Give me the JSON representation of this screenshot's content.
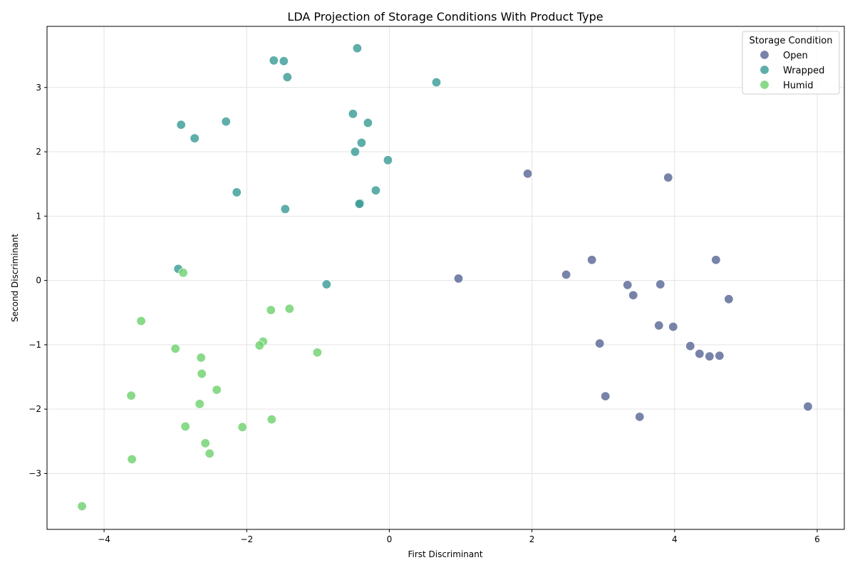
{
  "chart_data": {
    "type": "scatter",
    "title": "LDA Projection of Storage Conditions With Product Type",
    "xlabel": "First Discriminant",
    "ylabel": "Second Discriminant",
    "xlim": [
      -4.8,
      6.38
    ],
    "ylim": [
      -3.87,
      3.95
    ],
    "xticks": [
      -4,
      -2,
      0,
      2,
      4,
      6
    ],
    "yticks": [
      -3,
      -2,
      -1,
      0,
      1,
      2,
      3
    ],
    "grid": true,
    "legend": {
      "title": "Storage Condition",
      "placement": "top-right"
    },
    "series": [
      {
        "name": "Open",
        "color": "#5a6896",
        "points": [
          [
            1.94,
            1.66
          ],
          [
            3.91,
            1.6
          ],
          [
            2.84,
            0.32
          ],
          [
            4.58,
            0.32
          ],
          [
            0.97,
            0.03
          ],
          [
            2.48,
            0.09
          ],
          [
            3.34,
            -0.07
          ],
          [
            3.8,
            -0.06
          ],
          [
            3.42,
            -0.23
          ],
          [
            4.76,
            -0.29
          ],
          [
            3.78,
            -0.7
          ],
          [
            3.98,
            -0.72
          ],
          [
            2.95,
            -0.98
          ],
          [
            4.22,
            -1.02
          ],
          [
            4.35,
            -1.14
          ],
          [
            4.49,
            -1.18
          ],
          [
            4.63,
            -1.17
          ],
          [
            3.03,
            -1.8
          ],
          [
            3.51,
            -2.12
          ],
          [
            5.87,
            -1.96
          ]
        ]
      },
      {
        "name": "Wrapped",
        "color": "#3b9c96",
        "points": [
          [
            -0.45,
            3.61
          ],
          [
            -1.62,
            3.42
          ],
          [
            -1.48,
            3.41
          ],
          [
            -1.43,
            3.16
          ],
          [
            0.66,
            3.08
          ],
          [
            -0.51,
            2.59
          ],
          [
            -0.3,
            2.45
          ],
          [
            -2.29,
            2.47
          ],
          [
            -2.92,
            2.42
          ],
          [
            -2.73,
            2.21
          ],
          [
            -0.39,
            2.14
          ],
          [
            -0.48,
            2.0
          ],
          [
            -0.02,
            1.87
          ],
          [
            -0.19,
            1.4
          ],
          [
            -2.14,
            1.37
          ],
          [
            -0.41,
            1.2
          ],
          [
            -0.42,
            1.19
          ],
          [
            -1.46,
            1.11
          ],
          [
            -2.96,
            0.18
          ],
          [
            -0.88,
            -0.06
          ]
        ]
      },
      {
        "name": "Humid",
        "color": "#6fd26f",
        "points": [
          [
            -2.89,
            0.12
          ],
          [
            -1.4,
            -0.44
          ],
          [
            -1.66,
            -0.46
          ],
          [
            -3.48,
            -0.63
          ],
          [
            -1.77,
            -0.95
          ],
          [
            -1.82,
            -1.01
          ],
          [
            -3.0,
            -1.06
          ],
          [
            -1.01,
            -1.12
          ],
          [
            -2.64,
            -1.2
          ],
          [
            -2.63,
            -1.45
          ],
          [
            -2.42,
            -1.7
          ],
          [
            -3.62,
            -1.79
          ],
          [
            -2.66,
            -1.92
          ],
          [
            -1.65,
            -2.16
          ],
          [
            -2.86,
            -2.27
          ],
          [
            -2.06,
            -2.28
          ],
          [
            -2.58,
            -2.53
          ],
          [
            -2.52,
            -2.69
          ],
          [
            -3.61,
            -2.78
          ],
          [
            -4.31,
            -3.51
          ]
        ]
      }
    ]
  }
}
